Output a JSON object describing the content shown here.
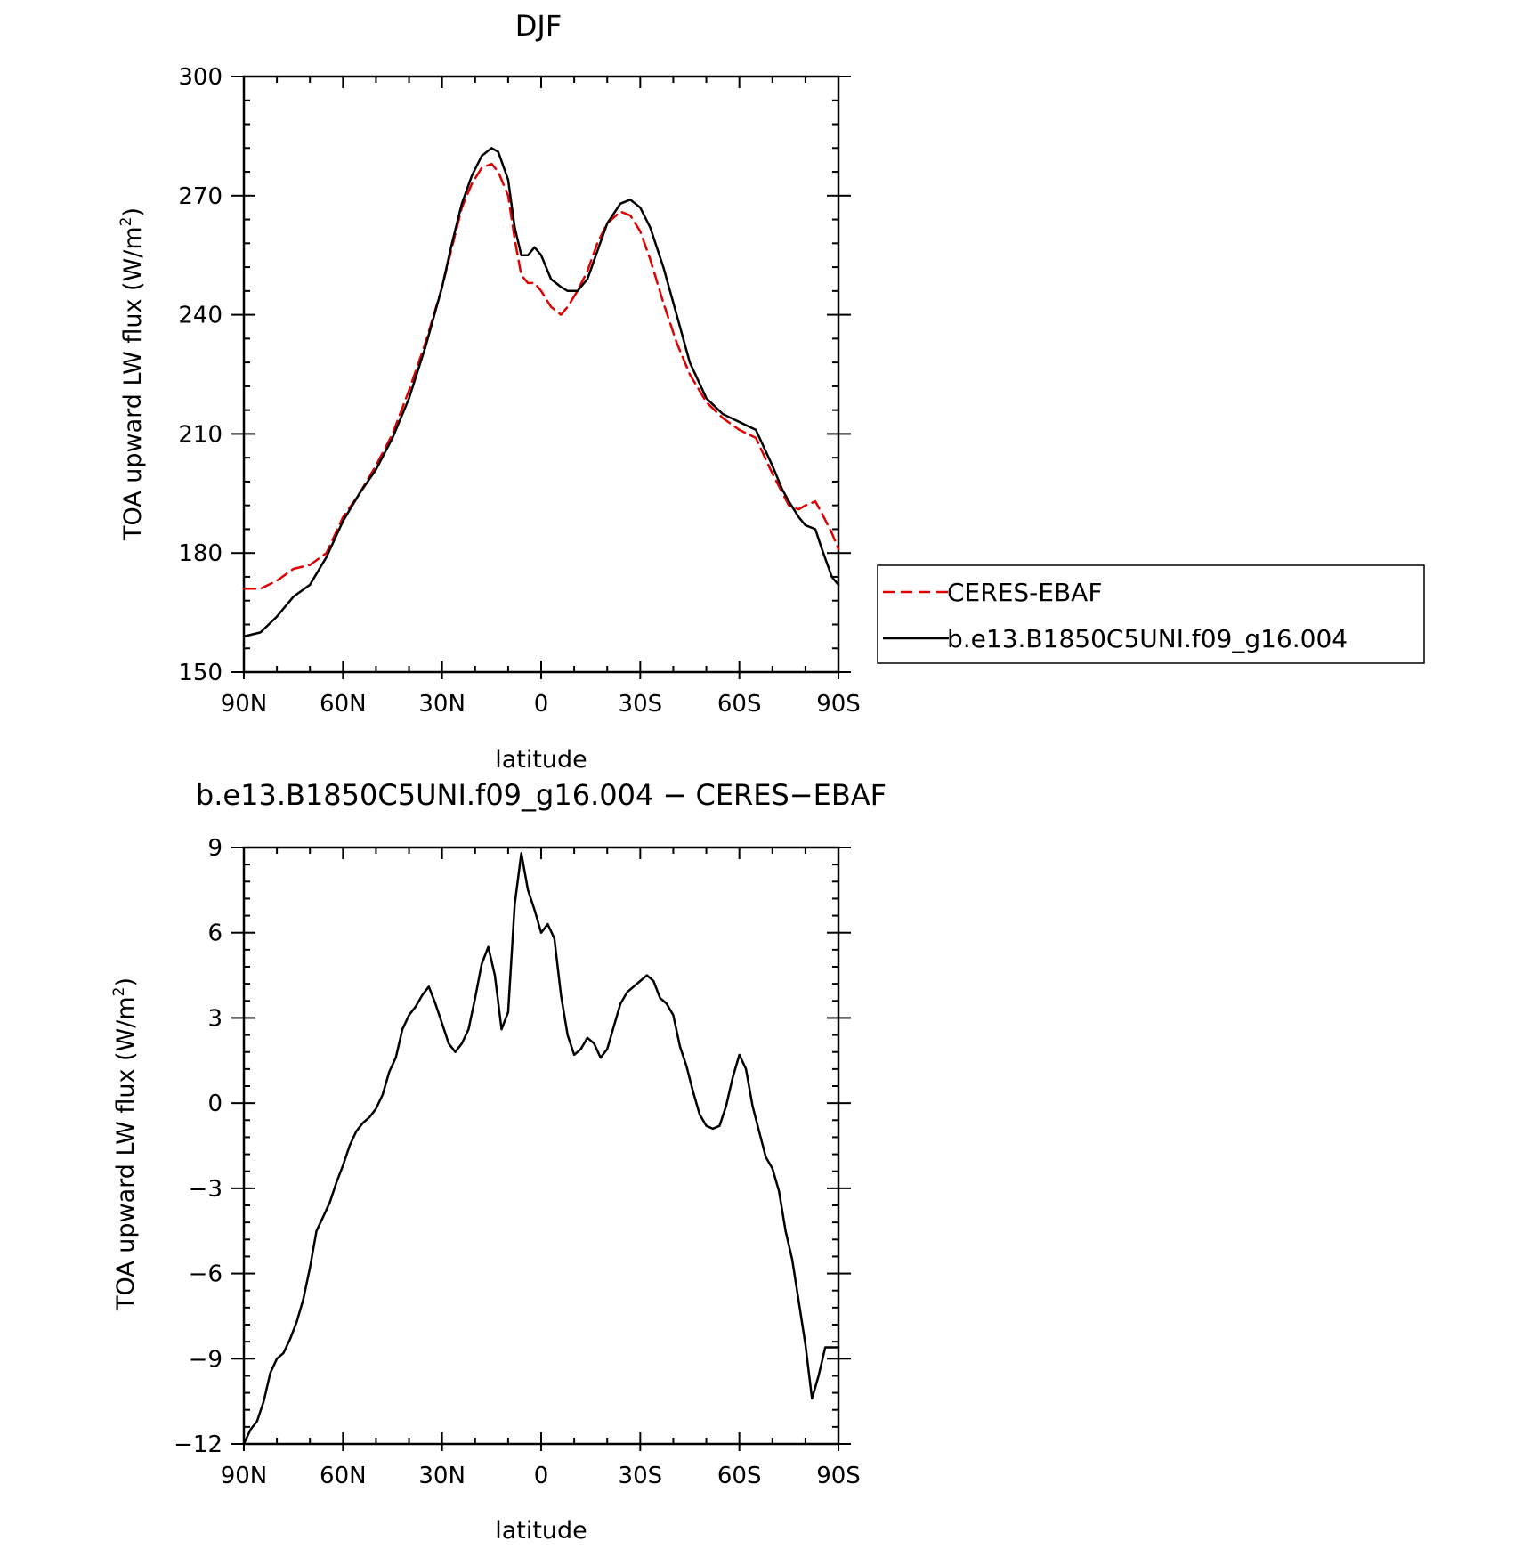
{
  "chart_data": [
    {
      "type": "line",
      "title": "DJF",
      "xlabel": "latitude",
      "ylabel": "TOA upward LW flux (W/m",
      "ylabel_sup": "2",
      "ylabel_end": ")",
      "xlim": [
        90,
        -90
      ],
      "ylim": [
        150,
        300
      ],
      "x_ticks": [
        90,
        60,
        30,
        0,
        -30,
        -60,
        -90
      ],
      "x_tick_labels": [
        "90N",
        "60N",
        "30N",
        "0",
        "30S",
        "60S",
        "90S"
      ],
      "y_ticks": [
        150,
        180,
        210,
        240,
        270,
        300
      ],
      "y_tick_labels": [
        "150",
        "180",
        "210",
        "240",
        "270",
        "300"
      ],
      "legend": "right",
      "series": [
        {
          "name": "CERES-EBAF",
          "color": "#e00000",
          "dash": "dashed",
          "x": [
            90,
            85,
            80,
            75,
            70,
            65,
            60,
            55,
            50,
            45,
            40,
            35,
            30,
            27,
            24,
            21,
            18,
            15,
            13,
            10,
            8,
            6,
            4,
            2,
            0,
            -3,
            -6,
            -8,
            -11,
            -14,
            -17,
            -20,
            -24,
            -27,
            -30,
            -33,
            -37,
            -41,
            -45,
            -50,
            -55,
            -60,
            -65,
            -70,
            -75,
            -78,
            -80,
            -83,
            -85,
            -88,
            -90
          ],
          "y": [
            171,
            171,
            173,
            176,
            177,
            180,
            189,
            195,
            202,
            210,
            221,
            233,
            247,
            257,
            267,
            273,
            277,
            278,
            276,
            270,
            259,
            250,
            248,
            248,
            246,
            242,
            240,
            242,
            246,
            251,
            258,
            263,
            266,
            265,
            261,
            254,
            243,
            233,
            225,
            218,
            214,
            211,
            209,
            200,
            192,
            191,
            192,
            193,
            190,
            185,
            181
          ]
        },
        {
          "name": "b.e13.B1850C5UNI.f09_g16.004",
          "color": "#000000",
          "dash": "solid",
          "x": [
            90,
            85,
            80,
            75,
            70,
            65,
            60,
            55,
            50,
            45,
            40,
            35,
            30,
            27,
            24,
            21,
            18,
            15,
            13,
            10,
            8,
            6,
            4,
            2,
            0,
            -3,
            -6,
            -8,
            -11,
            -14,
            -17,
            -20,
            -24,
            -27,
            -30,
            -33,
            -37,
            -41,
            -45,
            -50,
            -55,
            -60,
            -65,
            -70,
            -73,
            -75,
            -78,
            -80,
            -83,
            -85,
            -88,
            -90
          ],
          "y": [
            159,
            160,
            164,
            169,
            172,
            179,
            188,
            195,
            201,
            209,
            219,
            232,
            247,
            258,
            268,
            275,
            280,
            282,
            281,
            274,
            262,
            255,
            255,
            257,
            255,
            249,
            247,
            246,
            246,
            249,
            256,
            263,
            268,
            269,
            267,
            262,
            252,
            240,
            228,
            219,
            215,
            213,
            211,
            202,
            196,
            193,
            189,
            187,
            186,
            181,
            174,
            172
          ]
        }
      ]
    },
    {
      "type": "line",
      "title": "b.e13.B1850C5UNI.f09_g16.004 − CERES−EBAF",
      "xlabel": "latitude",
      "ylabel": "TOA upward LW flux (W/m",
      "ylabel_sup": "2",
      "ylabel_end": ")",
      "xlim": [
        90,
        -90
      ],
      "ylim": [
        -12,
        9
      ],
      "x_ticks": [
        90,
        60,
        30,
        0,
        -30,
        -60,
        -90
      ],
      "x_tick_labels": [
        "90N",
        "60N",
        "30N",
        "0",
        "30S",
        "60S",
        "90S"
      ],
      "y_ticks": [
        -12,
        -9,
        -6,
        -3,
        0,
        3,
        6,
        9
      ],
      "y_tick_labels": [
        "−12",
        "−9",
        "−6",
        "−3",
        "0",
        "3",
        "6",
        "9"
      ],
      "series": [
        {
          "color": "#000000",
          "dash": "solid",
          "x": [
            90,
            88,
            86,
            84,
            82,
            80,
            78,
            76,
            74,
            72,
            70,
            68,
            66,
            64,
            62,
            60,
            58,
            56,
            54,
            52,
            50,
            48,
            46,
            44,
            42,
            40,
            38,
            36,
            34,
            32,
            30,
            28,
            26,
            24,
            22,
            20,
            18,
            16,
            14,
            12,
            10,
            8,
            6,
            4,
            2,
            0,
            -2,
            -4,
            -6,
            -8,
            -10,
            -12,
            -14,
            -16,
            -18,
            -20,
            -22,
            -24,
            -26,
            -28,
            -30,
            -32,
            -34,
            -36,
            -38,
            -40,
            -42,
            -44,
            -46,
            -48,
            -50,
            -52,
            -54,
            -56,
            -58,
            -60,
            -62,
            -64,
            -66,
            -68,
            -70,
            -72,
            -74,
            -76,
            -78,
            -80,
            -82,
            -84,
            -86,
            -88,
            -90
          ],
          "y": [
            -12,
            -11.5,
            -11.2,
            -10.5,
            -9.5,
            -9.0,
            -8.8,
            -8.3,
            -7.7,
            -6.9,
            -5.8,
            -4.5,
            -4.0,
            -3.5,
            -2.8,
            -2.2,
            -1.5,
            -1.0,
            -0.7,
            -0.5,
            -0.2,
            0.3,
            1.1,
            1.6,
            2.6,
            3.1,
            3.4,
            3.8,
            4.1,
            3.5,
            2.8,
            2.1,
            1.8,
            2.1,
            2.6,
            3.7,
            4.9,
            5.5,
            4.5,
            2.6,
            3.2,
            7.0,
            8.8,
            7.5,
            6.8,
            6.0,
            6.3,
            5.8,
            3.8,
            2.4,
            1.7,
            1.9,
            2.3,
            2.1,
            1.6,
            1.9,
            2.7,
            3.5,
            3.9,
            4.1,
            4.3,
            4.5,
            4.3,
            3.7,
            3.5,
            3.1,
            2.0,
            1.3,
            0.4,
            -0.4,
            -0.8,
            -0.9,
            -0.8,
            -0.1,
            0.9,
            1.7,
            1.2,
            -0.1,
            -1.0,
            -1.9,
            -2.3,
            -3.1,
            -4.5,
            -5.5,
            -7.0,
            -8.5,
            -10.4,
            -9.6,
            -8.6,
            -8.6,
            -8.6
          ]
        }
      ]
    }
  ]
}
